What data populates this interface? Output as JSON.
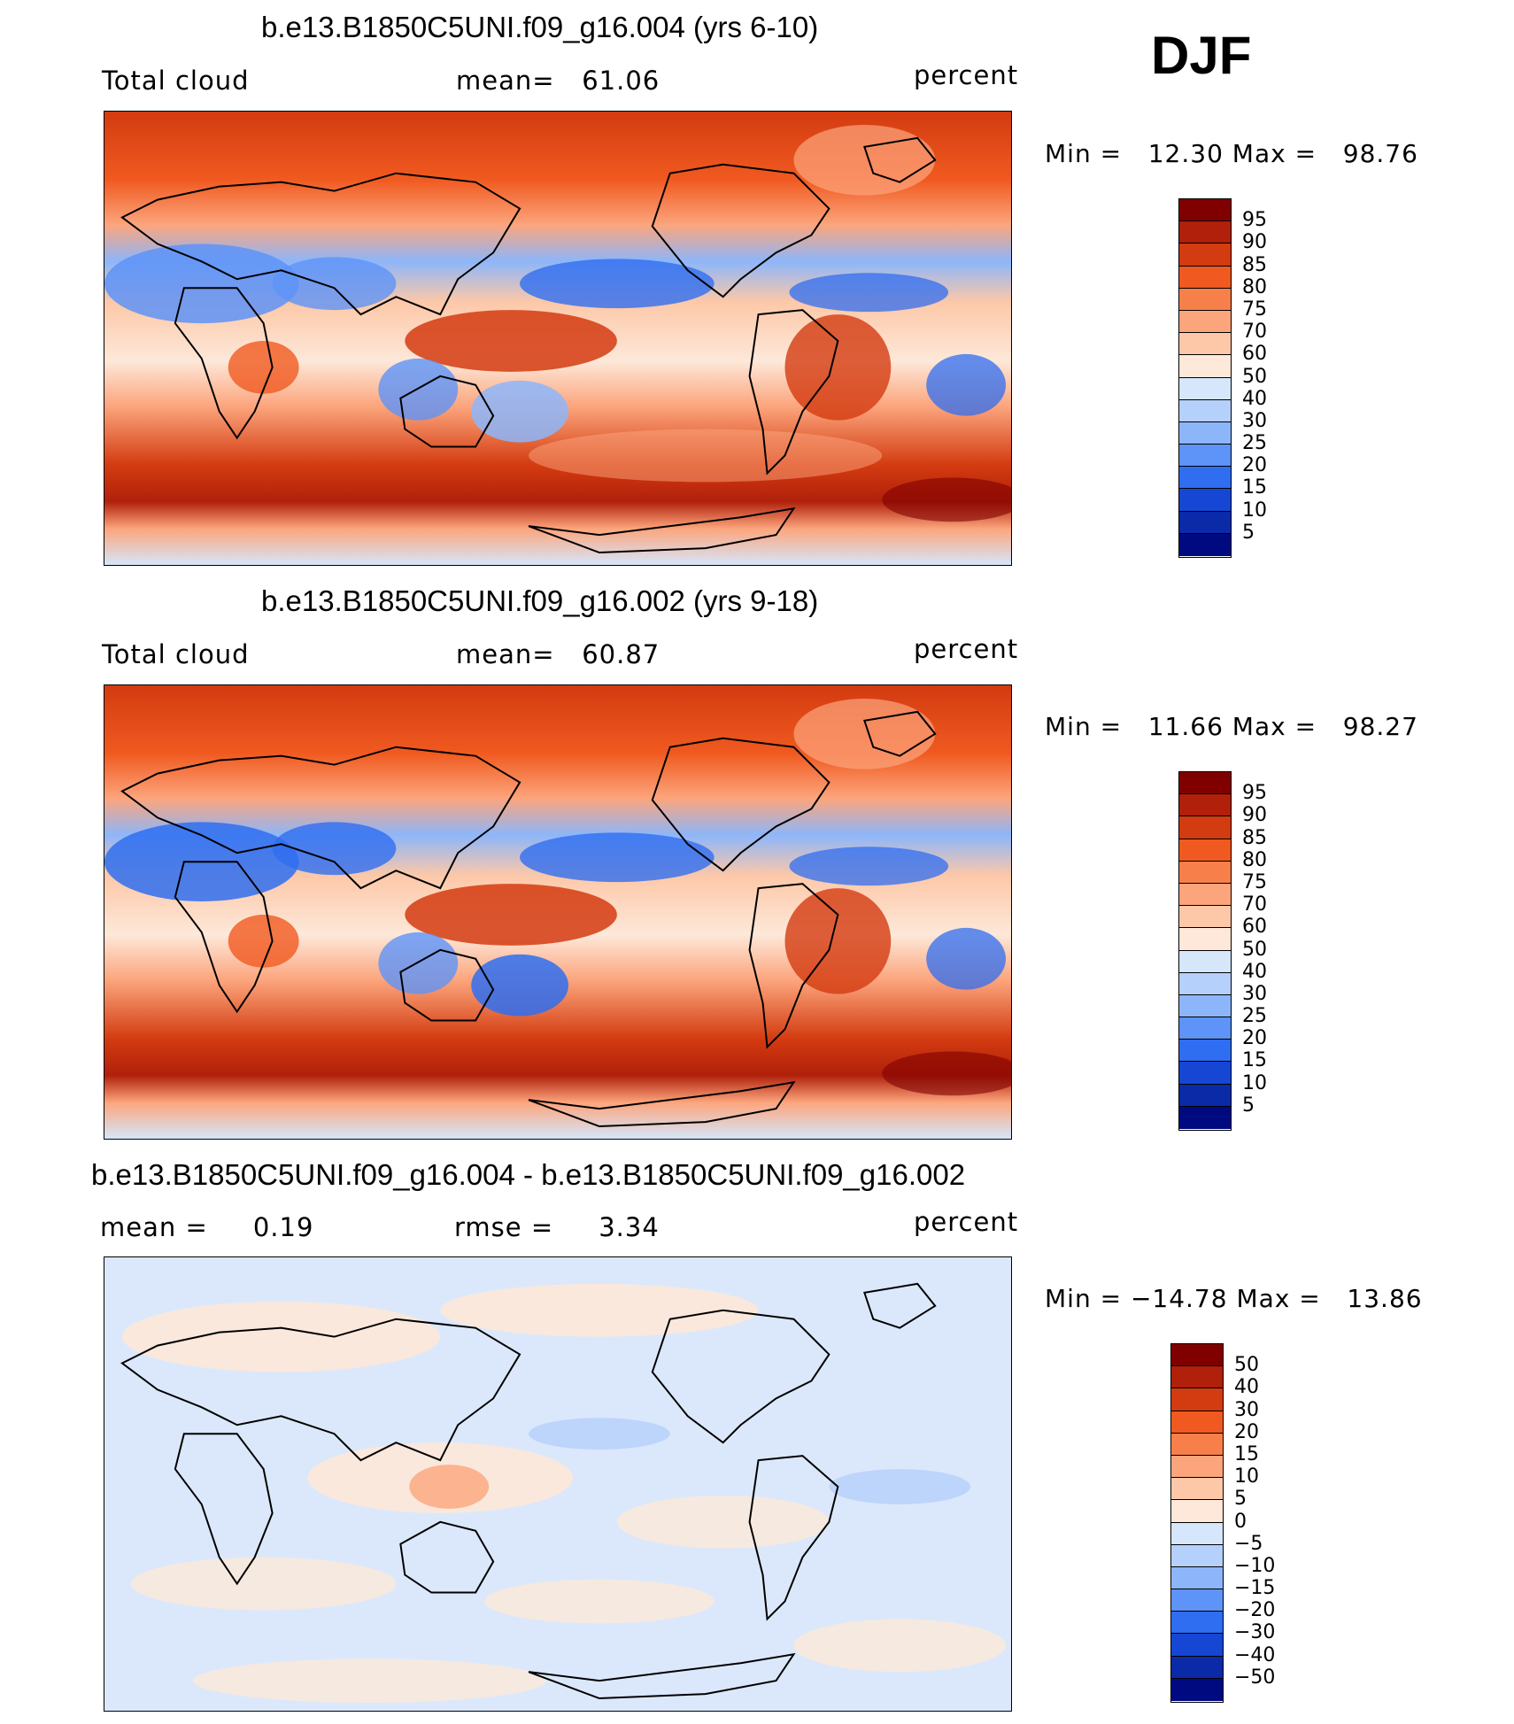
{
  "season": "DJF",
  "panels": [
    {
      "title": "b.e13.B1850C5UNI.f09_g16.004 (yrs 6-10)",
      "left_label": "Total cloud",
      "center_label": "mean=   61.06",
      "right_label": "percent",
      "minmax": "Min =   12.30 Max =   98.76",
      "colorbar": {
        "labels": [
          "95",
          "90",
          "85",
          "80",
          "75",
          "70",
          "60",
          "50",
          "40",
          "30",
          "25",
          "20",
          "15",
          "10",
          "5"
        ],
        "colors": [
          "#800000",
          "#b0200b",
          "#d33b10",
          "#f05a20",
          "#f7804a",
          "#fca57d",
          "#fdc8a8",
          "#fde8d9",
          "#d6e6fb",
          "#b5d0fb",
          "#8db6fa",
          "#5e93f7",
          "#2f6ef0",
          "#1546d4",
          "#0a2aa8",
          "#000a80"
        ]
      },
      "map_fill": "warm"
    },
    {
      "title": "b.e13.B1850C5UNI.f09_g16.002 (yrs 9-18)",
      "left_label": "Total cloud",
      "center_label": "mean=   60.87",
      "right_label": "percent",
      "minmax": "Min =   11.66 Max =   98.27",
      "colorbar": {
        "labels": [
          "95",
          "90",
          "85",
          "80",
          "75",
          "70",
          "60",
          "50",
          "40",
          "30",
          "25",
          "20",
          "15",
          "10",
          "5"
        ],
        "colors": [
          "#800000",
          "#b0200b",
          "#d33b10",
          "#f05a20",
          "#f7804a",
          "#fca57d",
          "#fdc8a8",
          "#fde8d9",
          "#d6e6fb",
          "#b5d0fb",
          "#8db6fa",
          "#5e93f7",
          "#2f6ef0",
          "#1546d4",
          "#0a2aa8",
          "#000a80"
        ]
      },
      "map_fill": "warm"
    },
    {
      "title": "b.e13.B1850C5UNI.f09_g16.004 - b.e13.B1850C5UNI.f09_g16.002",
      "left_label": "mean =     0.19",
      "center_label": "rmse =     3.34",
      "right_label": "percent",
      "minmax": "Min = −14.78 Max =   13.86",
      "colorbar": {
        "labels": [
          "50",
          "40",
          "30",
          "20",
          "15",
          "10",
          "5",
          "0",
          "−5",
          "−10",
          "−15",
          "−20",
          "−30",
          "−40",
          "−50"
        ],
        "colors": [
          "#800000",
          "#b0200b",
          "#d33b10",
          "#f05a20",
          "#f7804a",
          "#fca57d",
          "#fdc8a8",
          "#fde8d9",
          "#d6e6fb",
          "#b5d0fb",
          "#8db6fa",
          "#5e93f7",
          "#2f6ef0",
          "#1546d4",
          "#0a2aa8",
          "#000a80"
        ]
      },
      "map_fill": "diff"
    }
  ]
}
